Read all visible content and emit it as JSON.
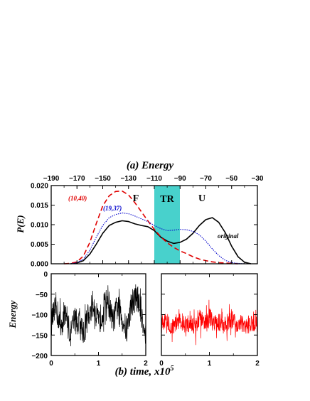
{
  "colors": {
    "original": "#000000",
    "run_10_40": "#e00000",
    "run_19_37": "#0000cc",
    "tr_band": "#48d1cc",
    "trace_b1": "#000000",
    "trace_b2": "#ff0000"
  },
  "chart_data": [
    {
      "type": "line",
      "panel": "a",
      "title": "(a) Energy",
      "xlabel": "",
      "ylabel": "P(E)",
      "xlim": [
        -190,
        -30
      ],
      "ylim": [
        0,
        0.02
      ],
      "x_ticks": [
        "−190",
        "−170",
        "−150",
        "−130",
        "−110",
        "−90",
        "−70",
        "−50",
        "−30"
      ],
      "y_ticks": [
        "0.000",
        "0.005",
        "0.010",
        "0.015",
        "0.020"
      ],
      "band": {
        "label": "TR",
        "x_range": [
          -110,
          -90
        ]
      },
      "region_labels": [
        "F",
        "U"
      ],
      "series": [
        {
          "name": "original",
          "style": "solid",
          "x": [
            -175,
            -170,
            -165,
            -160,
            -155,
            -150,
            -145,
            -140,
            -135,
            -130,
            -125,
            -120,
            -115,
            -110,
            -105,
            -100,
            -95,
            -90,
            -85,
            -80,
            -75,
            -70,
            -65,
            -60,
            -55,
            -50,
            -45,
            -40,
            -35
          ],
          "y": [
            0.0,
            0.0002,
            0.0008,
            0.0025,
            0.005,
            0.0078,
            0.0098,
            0.0106,
            0.011,
            0.0108,
            0.0102,
            0.0098,
            0.0095,
            0.0085,
            0.0068,
            0.0058,
            0.0052,
            0.0055,
            0.0063,
            0.0078,
            0.0098,
            0.0113,
            0.0118,
            0.0106,
            0.008,
            0.0045,
            0.0018,
            0.0004,
            0.0
          ]
        },
        {
          "name": "(10,40)",
          "style": "dashed",
          "x": [
            -180,
            -175,
            -170,
            -165,
            -160,
            -155,
            -150,
            -145,
            -140,
            -135,
            -130,
            -125,
            -120,
            -115,
            -110,
            -105,
            -100,
            -95,
            -90,
            -85,
            -80,
            -75,
            -70,
            -65,
            -60,
            -55,
            -50,
            -45
          ],
          "y": [
            0.0,
            0.0001,
            0.0005,
            0.002,
            0.0055,
            0.0103,
            0.0148,
            0.0174,
            0.0185,
            0.0186,
            0.0176,
            0.0156,
            0.0133,
            0.011,
            0.0088,
            0.0069,
            0.0054,
            0.0042,
            0.0033,
            0.0026,
            0.0018,
            0.0012,
            0.0008,
            0.0005,
            0.0003,
            0.0002,
            0.0001,
            0.0
          ]
        },
        {
          "name": "(19,37)",
          "style": "dotted",
          "x": [
            -175,
            -170,
            -165,
            -160,
            -155,
            -150,
            -145,
            -140,
            -135,
            -130,
            -125,
            -120,
            -115,
            -110,
            -105,
            -100,
            -95,
            -90,
            -85,
            -80,
            -75,
            -70,
            -65,
            -60,
            -55,
            -50,
            -45,
            -40
          ],
          "y": [
            0.0,
            0.0003,
            0.0012,
            0.0035,
            0.0068,
            0.0098,
            0.0118,
            0.0126,
            0.013,
            0.0128,
            0.0122,
            0.0115,
            0.0108,
            0.0098,
            0.009,
            0.0085,
            0.0086,
            0.0088,
            0.0087,
            0.0083,
            0.0074,
            0.0058,
            0.0038,
            0.0021,
            0.0009,
            0.0003,
            0.0001,
            0.0
          ]
        }
      ]
    },
    {
      "type": "line",
      "panel": "b1",
      "title": "",
      "xlabel": "(b) time, x10",
      "xlabel_exponent": "5",
      "ylabel": "Energy",
      "xlim": [
        0,
        2
      ],
      "ylim": [
        -200,
        0
      ],
      "x_ticks": [
        "0",
        "1",
        "2"
      ],
      "y_ticks": [
        "0",
        "−50",
        "−100",
        "−150",
        "−200"
      ],
      "series": [
        {
          "name": "",
          "x": [
            0.0,
            0.1,
            0.2,
            0.3,
            0.4,
            0.5,
            0.6,
            0.7,
            0.8,
            0.9,
            1.0,
            1.1,
            1.2,
            1.3,
            1.4,
            1.5,
            1.6,
            1.7,
            1.8,
            1.9,
            2.0
          ],
          "y": [
            -120,
            -80,
            -130,
            -90,
            -150,
            -110,
            -125,
            -140,
            -95,
            -70,
            -125,
            -85,
            -60,
            -120,
            -80,
            -110,
            -140,
            -70,
            -55,
            -90,
            -150
          ],
          "spread": 35
        }
      ]
    },
    {
      "type": "line",
      "panel": "b2",
      "title": "",
      "xlabel": "",
      "ylabel": "",
      "xlim": [
        0,
        2
      ],
      "ylim": [
        -200,
        0
      ],
      "x_ticks": [
        "0",
        "1",
        "2"
      ],
      "y_ticks": [],
      "series": [
        {
          "name": "",
          "x": [
            0.0,
            0.1,
            0.2,
            0.3,
            0.4,
            0.5,
            0.6,
            0.7,
            0.8,
            0.9,
            1.0,
            1.1,
            1.2,
            1.3,
            1.4,
            1.5,
            1.6,
            1.7,
            1.8,
            1.9,
            2.0
          ],
          "y": [
            -125,
            -110,
            -130,
            -120,
            -115,
            -125,
            -120,
            -135,
            -110,
            -120,
            -105,
            -125,
            -118,
            -130,
            -115,
            -112,
            -125,
            -120,
            -128,
            -118,
            -122
          ],
          "spread": 22
        }
      ]
    }
  ]
}
